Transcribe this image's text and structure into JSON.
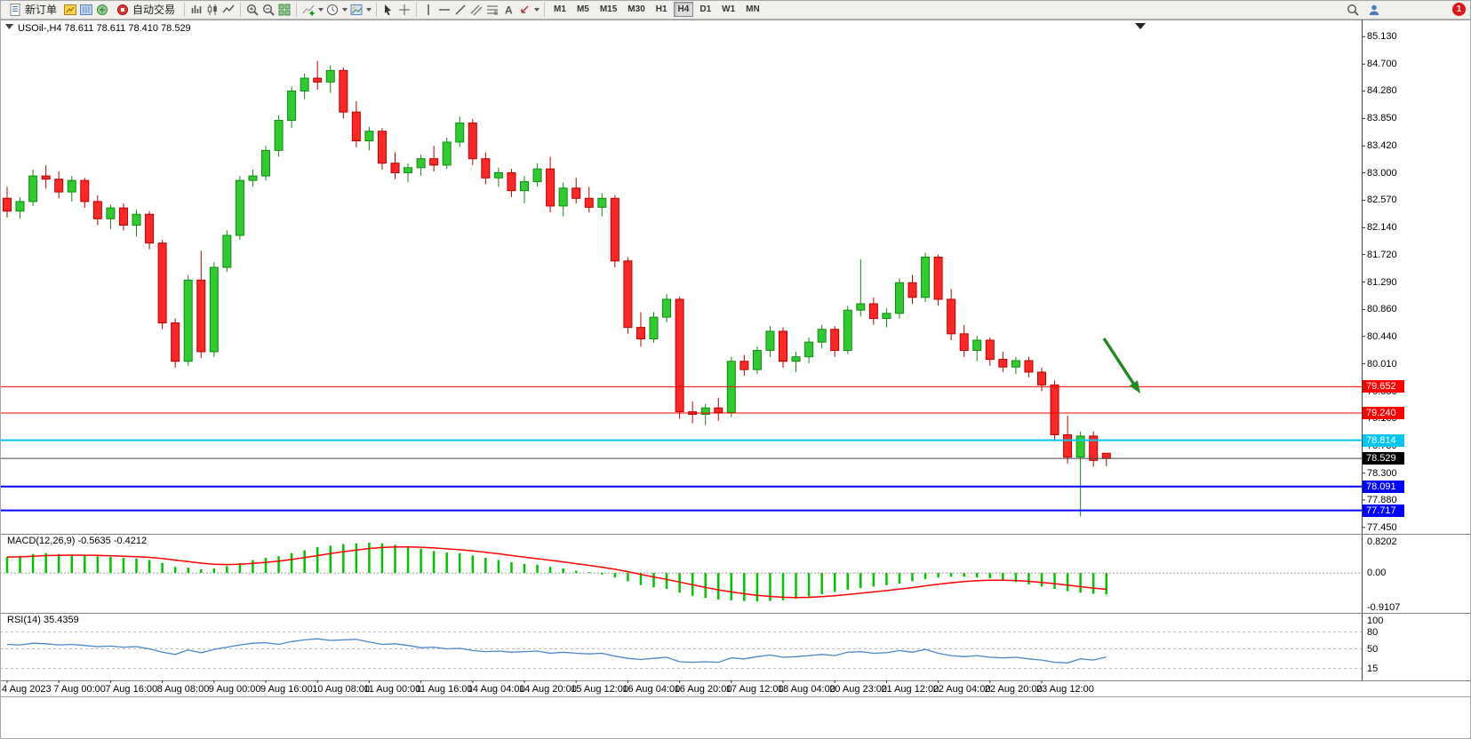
{
  "toolbar": {
    "new_order": "新订单",
    "auto_trading": "自动交易",
    "timeframes": [
      "M1",
      "M5",
      "M15",
      "M30",
      "H1",
      "H4",
      "D1",
      "W1",
      "MN"
    ],
    "active_timeframe": "H4",
    "notification_badge": "1"
  },
  "chart": {
    "title": "USOil-,H4  78.611 78.611 78.410 78.529",
    "price_ticks": [
      "85.130",
      "84.700",
      "84.280",
      "83.850",
      "83.420",
      "83.000",
      "82.570",
      "82.140",
      "81.720",
      "81.290",
      "80.860",
      "80.440",
      "80.010",
      "79.580",
      "79.160",
      "78.730",
      "78.300",
      "77.880",
      "77.450"
    ],
    "levels": [
      {
        "price": 79.652,
        "label": "79.652",
        "color": "#ff0000",
        "text": "#ffffff",
        "width": 1
      },
      {
        "price": 79.24,
        "label": "79.240",
        "color": "#ff0000",
        "text": "#ffffff",
        "width": 1
      },
      {
        "price": 78.814,
        "label": "78.814",
        "color": "#00c8f0",
        "text": "#ffffff",
        "width": 2
      },
      {
        "price": 78.091,
        "label": "78.091",
        "color": "#0000ff",
        "text": "#ffffff",
        "width": 2
      },
      {
        "price": 77.717,
        "label": "77.717",
        "color": "#0000ff",
        "text": "#ffffff",
        "width": 2
      }
    ],
    "current_price": {
      "price": 78.529,
      "label": "78.529",
      "color": "#000000",
      "text": "#ffffff"
    },
    "time_labels": [
      "4 Aug 2023",
      "7 Aug 00:00",
      "7 Aug 16:00",
      "8 Aug 08:00",
      "9 Aug 00:00",
      "9 Aug 16:00",
      "10 Aug 08:00",
      "11 Aug 00:00",
      "11 Aug 16:00",
      "14 Aug 04:00",
      "14 Aug 20:00",
      "15 Aug 12:00",
      "16 Aug 04:00",
      "16 Aug 20:00",
      "17 Aug 12:00",
      "18 Aug 04:00",
      "20 Aug 23:00",
      "21 Aug 12:00",
      "22 Aug 04:00",
      "22 Aug 20:00",
      "23 Aug 12:00"
    ]
  },
  "indicators": {
    "macd": {
      "label": "MACD(12,26,9) -0.5635 -0.4212",
      "scale": [
        "0.8202",
        "0.00",
        "-0.9107"
      ],
      "scale_values": [
        0.8202,
        0,
        -0.9107
      ]
    },
    "rsi": {
      "label": "RSI(14) 35.4359",
      "scale": [
        "100",
        "80",
        "50",
        "15"
      ],
      "scale_values": [
        100,
        80,
        50,
        15
      ]
    }
  },
  "colors": {
    "bull": "#2fcc2f",
    "bull_stroke": "#118a11",
    "bear": "#ff2626",
    "bear_stroke": "#bb0000",
    "macd_hist": "#00c400",
    "macd_signal": "#ff0000",
    "rsi_line": "#4a86c8",
    "arrow": "#1f8b1f",
    "divider": "#808080",
    "current_price_line": "#444444"
  },
  "annotations": {
    "arrow": {
      "shape": "diagonal-arrow",
      "direction": "down-right",
      "color": "#1f8b1f"
    }
  },
  "chart_data": {
    "type": "candlestick",
    "title": "USOil- H4",
    "ylim": [
      77.35,
      85.37
    ],
    "x_axis_labels": [
      "4 Aug 2023",
      "7 Aug 00:00",
      "7 Aug 16:00",
      "8 Aug 08:00",
      "9 Aug 00:00",
      "9 Aug 16:00",
      "10 Aug 08:00",
      "11 Aug 00:00",
      "11 Aug 16:00",
      "14 Aug 04:00",
      "14 Aug 20:00",
      "15 Aug 12:00",
      "16 Aug 04:00",
      "16 Aug 20:00",
      "17 Aug 12:00",
      "18 Aug 04:00",
      "20 Aug 23:00",
      "21 Aug 12:00",
      "22 Aug 04:00",
      "22 Aug 20:00",
      "23 Aug 12:00"
    ],
    "label_every_n_candles": 4,
    "candles_ohlc": [
      [
        82.6,
        82.78,
        82.3,
        82.4
      ],
      [
        82.4,
        82.62,
        82.28,
        82.55
      ],
      [
        82.55,
        83.05,
        82.48,
        82.95
      ],
      [
        82.95,
        83.12,
        82.75,
        82.9
      ],
      [
        82.9,
        83.02,
        82.6,
        82.7
      ],
      [
        82.7,
        82.95,
        82.55,
        82.88
      ],
      [
        82.88,
        82.92,
        82.45,
        82.55
      ],
      [
        82.55,
        82.65,
        82.18,
        82.28
      ],
      [
        82.28,
        82.5,
        82.12,
        82.45
      ],
      [
        82.45,
        82.52,
        82.1,
        82.18
      ],
      [
        82.18,
        82.42,
        82.0,
        82.35
      ],
      [
        82.35,
        82.4,
        81.8,
        81.9
      ],
      [
        81.9,
        81.95,
        80.55,
        80.65
      ],
      [
        80.65,
        80.72,
        79.95,
        80.05
      ],
      [
        80.05,
        81.4,
        79.98,
        81.32
      ],
      [
        81.32,
        81.78,
        80.1,
        80.2
      ],
      [
        80.2,
        81.6,
        80.12,
        81.52
      ],
      [
        81.52,
        82.1,
        81.45,
        82.02
      ],
      [
        82.02,
        82.95,
        81.95,
        82.88
      ],
      [
        82.88,
        83.05,
        82.78,
        82.95
      ],
      [
        82.95,
        83.42,
        82.88,
        83.35
      ],
      [
        83.35,
        83.9,
        83.25,
        83.82
      ],
      [
        83.82,
        84.35,
        83.7,
        84.28
      ],
      [
        84.28,
        84.55,
        84.15,
        84.48
      ],
      [
        84.48,
        84.75,
        84.3,
        84.42
      ],
      [
        84.42,
        84.68,
        84.25,
        84.6
      ],
      [
        84.6,
        84.65,
        83.85,
        83.95
      ],
      [
        83.95,
        84.12,
        83.4,
        83.5
      ],
      [
        83.5,
        83.72,
        83.35,
        83.65
      ],
      [
        83.65,
        83.7,
        83.05,
        83.15
      ],
      [
        83.15,
        83.32,
        82.9,
        83.0
      ],
      [
        83.0,
        83.15,
        82.85,
        83.08
      ],
      [
        83.08,
        83.28,
        82.95,
        83.22
      ],
      [
        83.22,
        83.42,
        83.02,
        83.12
      ],
      [
        83.12,
        83.55,
        83.06,
        83.48
      ],
      [
        83.48,
        83.88,
        83.4,
        83.78
      ],
      [
        83.78,
        83.84,
        83.12,
        83.22
      ],
      [
        83.22,
        83.32,
        82.82,
        82.92
      ],
      [
        82.92,
        83.08,
        82.78,
        83.0
      ],
      [
        83.0,
        83.06,
        82.62,
        82.72
      ],
      [
        82.72,
        82.95,
        82.52,
        82.86
      ],
      [
        82.86,
        83.15,
        82.78,
        83.06
      ],
      [
        83.06,
        83.25,
        82.38,
        82.48
      ],
      [
        82.48,
        82.85,
        82.32,
        82.76
      ],
      [
        82.76,
        82.92,
        82.52,
        82.6
      ],
      [
        82.6,
        82.78,
        82.38,
        82.46
      ],
      [
        82.46,
        82.68,
        82.32,
        82.6
      ],
      [
        82.6,
        82.65,
        81.52,
        81.62
      ],
      [
        81.62,
        81.68,
        80.48,
        80.58
      ],
      [
        80.58,
        80.82,
        80.28,
        80.4
      ],
      [
        80.4,
        80.82,
        80.34,
        80.74
      ],
      [
        80.74,
        81.1,
        80.66,
        81.02
      ],
      [
        81.02,
        81.06,
        79.15,
        79.26
      ],
      [
        79.26,
        79.42,
        79.08,
        79.22
      ],
      [
        79.22,
        79.38,
        79.05,
        79.32
      ],
      [
        79.32,
        79.48,
        79.12,
        79.25
      ],
      [
        79.25,
        80.12,
        79.18,
        80.05
      ],
      [
        80.05,
        80.15,
        79.82,
        79.92
      ],
      [
        79.92,
        80.28,
        79.85,
        80.22
      ],
      [
        80.22,
        80.6,
        80.12,
        80.52
      ],
      [
        80.52,
        80.58,
        79.95,
        80.05
      ],
      [
        80.05,
        80.2,
        79.88,
        80.12
      ],
      [
        80.12,
        80.42,
        80.02,
        80.35
      ],
      [
        80.35,
        80.62,
        80.25,
        80.55
      ],
      [
        80.55,
        80.6,
        80.12,
        80.22
      ],
      [
        80.22,
        80.92,
        80.16,
        80.85
      ],
      [
        80.85,
        81.65,
        80.75,
        80.95
      ],
      [
        80.95,
        81.05,
        80.62,
        80.72
      ],
      [
        80.72,
        80.88,
        80.58,
        80.8
      ],
      [
        80.8,
        81.35,
        80.72,
        81.28
      ],
      [
        81.28,
        81.4,
        80.95,
        81.05
      ],
      [
        81.05,
        81.75,
        80.98,
        81.68
      ],
      [
        81.68,
        81.72,
        80.92,
        81.02
      ],
      [
        81.02,
        81.18,
        80.38,
        80.48
      ],
      [
        80.48,
        80.62,
        80.12,
        80.22
      ],
      [
        80.22,
        80.45,
        80.05,
        80.38
      ],
      [
        80.38,
        80.42,
        79.98,
        80.08
      ],
      [
        80.08,
        80.2,
        79.88,
        79.96
      ],
      [
        79.96,
        80.12,
        79.85,
        80.06
      ],
      [
        80.06,
        80.12,
        79.8,
        79.88
      ],
      [
        79.88,
        79.95,
        79.58,
        79.68
      ],
      [
        79.68,
        79.75,
        78.8,
        78.9
      ],
      [
        78.9,
        79.2,
        78.45,
        78.55
      ],
      [
        78.55,
        78.95,
        77.62,
        78.88
      ],
      [
        78.88,
        78.95,
        78.4,
        78.5
      ],
      [
        78.611,
        78.611,
        78.41,
        78.529
      ]
    ],
    "macd": {
      "params": "12,26,9",
      "last_main": -0.5635,
      "last_signal": -0.4212,
      "ylim": [
        -0.9107,
        0.8202
      ],
      "signal_ema_period": 9,
      "histogram": [
        0.42,
        0.45,
        0.5,
        0.52,
        0.5,
        0.48,
        0.46,
        0.44,
        0.42,
        0.4,
        0.38,
        0.34,
        0.26,
        0.16,
        0.14,
        0.1,
        0.12,
        0.18,
        0.26,
        0.34,
        0.4,
        0.44,
        0.52,
        0.6,
        0.68,
        0.72,
        0.76,
        0.78,
        0.8,
        0.78,
        0.74,
        0.7,
        0.64,
        0.58,
        0.54,
        0.52,
        0.46,
        0.4,
        0.34,
        0.28,
        0.24,
        0.22,
        0.16,
        0.12,
        0.06,
        0.02,
        -0.04,
        -0.12,
        -0.22,
        -0.32,
        -0.38,
        -0.42,
        -0.52,
        -0.6,
        -0.66,
        -0.7,
        -0.72,
        -0.74,
        -0.75,
        -0.74,
        -0.72,
        -0.68,
        -0.62,
        -0.56,
        -0.5,
        -0.44,
        -0.4,
        -0.36,
        -0.32,
        -0.28,
        -0.22,
        -0.16,
        -0.12,
        -0.1,
        -0.1,
        -0.12,
        -0.14,
        -0.18,
        -0.24,
        -0.3,
        -0.36,
        -0.42,
        -0.48,
        -0.52,
        -0.55,
        -0.5635
      ]
    },
    "rsi": {
      "period": 14,
      "last": 35.4359,
      "ylim": [
        0,
        100
      ],
      "levels": [
        80,
        50,
        15
      ],
      "values": [
        58,
        57,
        60,
        59,
        57,
        58,
        56,
        54,
        55,
        53,
        54,
        50,
        44,
        40,
        48,
        43,
        49,
        53,
        57,
        60,
        61,
        58,
        63,
        66,
        68,
        65,
        66,
        67,
        62,
        58,
        59,
        56,
        52,
        53,
        50,
        51,
        47,
        45,
        46,
        44,
        45,
        46,
        42,
        44,
        42,
        41,
        42,
        37,
        33,
        31,
        33,
        35,
        27,
        26,
        27,
        26,
        34,
        32,
        36,
        39,
        35,
        36,
        38,
        40,
        38,
        44,
        45,
        42,
        43,
        47,
        44,
        49,
        42,
        38,
        36,
        38,
        35,
        34,
        35,
        32,
        30,
        26,
        25,
        32,
        30,
        35.44
      ]
    },
    "price_levels": [
      79.652,
      79.24,
      78.814,
      78.091,
      77.717
    ],
    "last_close": 78.529
  }
}
